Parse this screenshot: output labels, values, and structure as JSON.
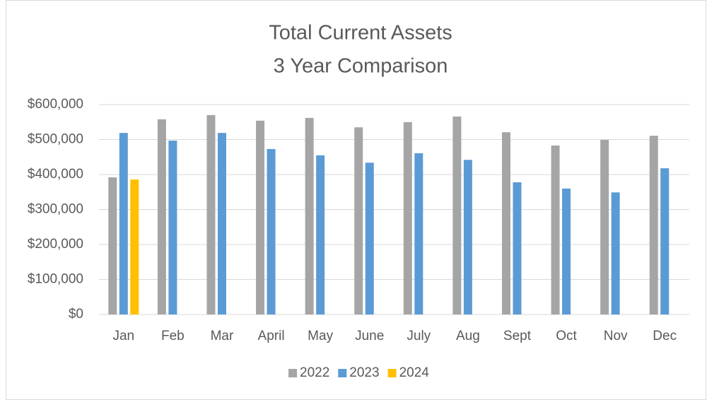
{
  "chart_data": {
    "type": "bar",
    "title": [
      "Total Current Assets",
      "3 Year Comparison"
    ],
    "categories": [
      "Jan",
      "Feb",
      "Mar",
      "April",
      "May",
      "June",
      "July",
      "Aug",
      "Sept",
      "Oct",
      "Nov",
      "Dec"
    ],
    "series": [
      {
        "name": "2022",
        "color": "#a5a5a5",
        "values": [
          392000,
          558000,
          570000,
          554000,
          562000,
          535000,
          550000,
          566000,
          521000,
          483000,
          499000,
          511000
        ]
      },
      {
        "name": "2023",
        "color": "#5b9bd5",
        "values": [
          519000,
          497000,
          519000,
          473000,
          455000,
          434000,
          461000,
          442000,
          378000,
          360000,
          349000,
          418000
        ]
      },
      {
        "name": "2024",
        "color": "#ffc000",
        "values": [
          386000,
          null,
          null,
          null,
          null,
          null,
          null,
          null,
          null,
          null,
          null,
          null
        ]
      }
    ],
    "ylim": [
      0,
      600000
    ],
    "yticks": [
      {
        "value": 0,
        "label": "$0"
      },
      {
        "value": 100000,
        "label": "$100,000"
      },
      {
        "value": 200000,
        "label": "$200,000"
      },
      {
        "value": 300000,
        "label": "$300,000"
      },
      {
        "value": 400000,
        "label": "$400,000"
      },
      {
        "value": 500000,
        "label": "$500,000"
      },
      {
        "value": 600000,
        "label": "$600,000"
      }
    ],
    "grid": true,
    "legend": "bottom"
  }
}
